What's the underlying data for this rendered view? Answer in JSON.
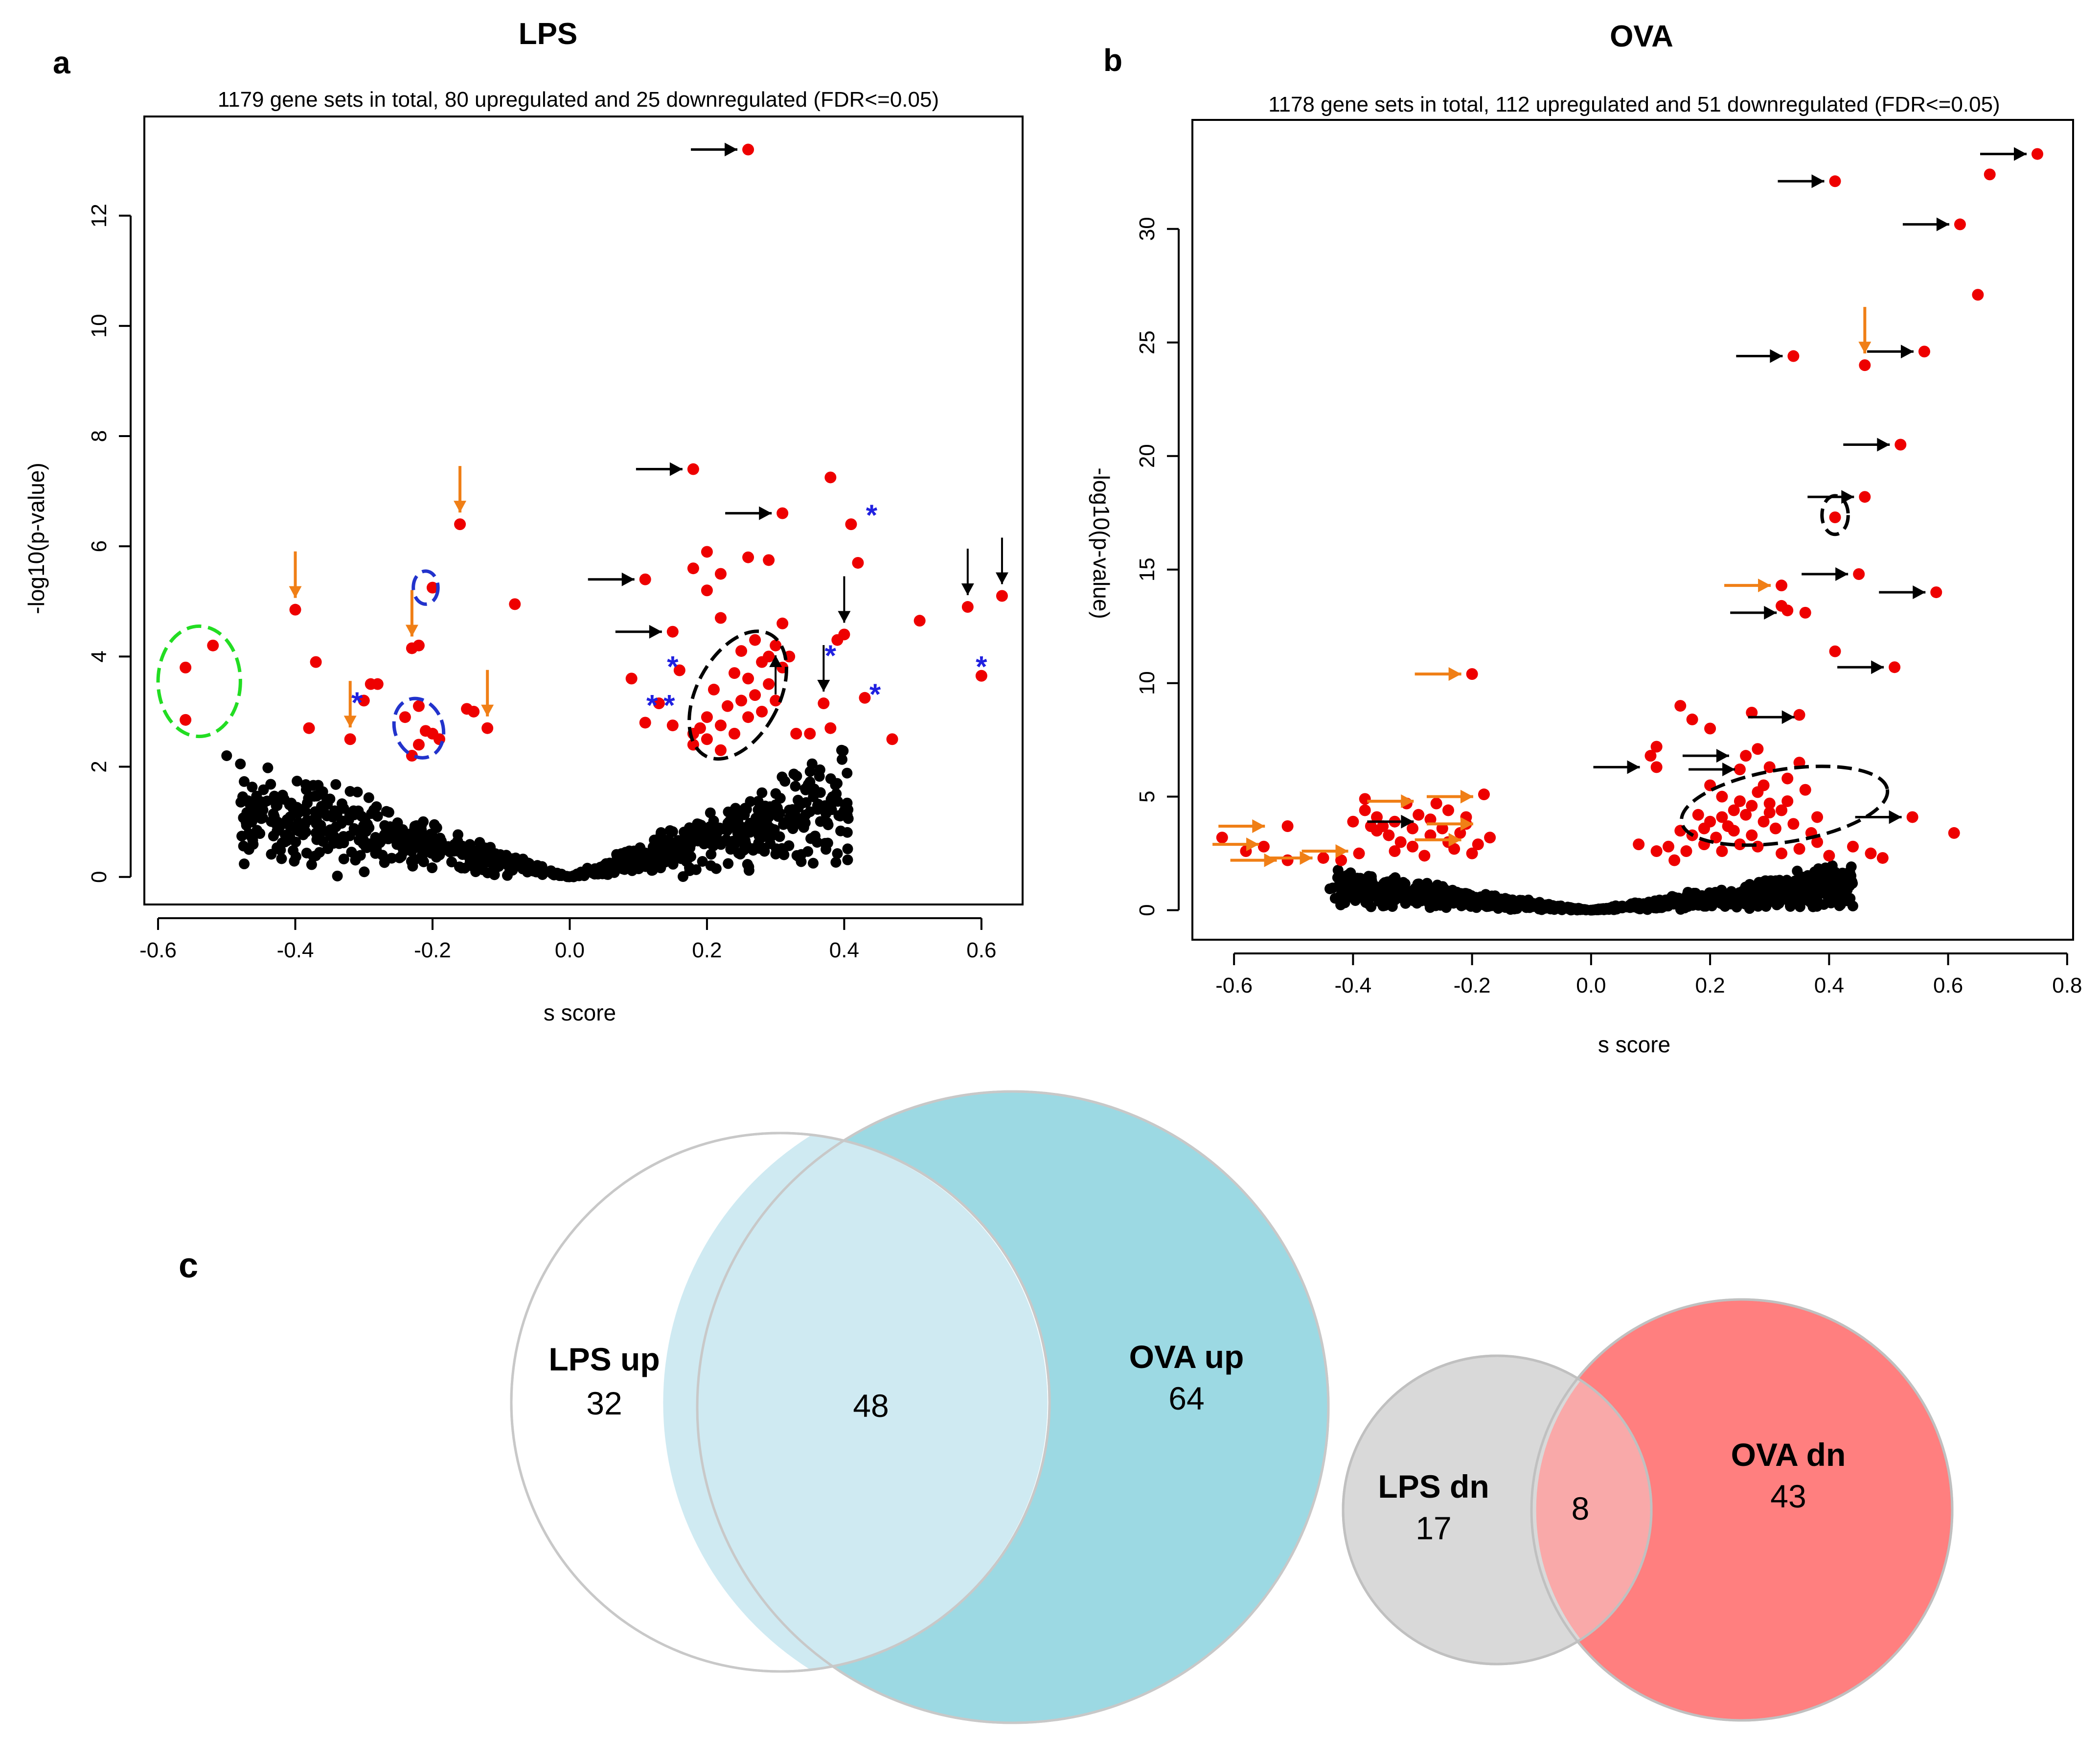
{
  "figure": {
    "panel_a_letter": "a",
    "panel_b_letter": "b",
    "panel_c_letter": "c"
  },
  "chart_data": [
    {
      "type": "scatter",
      "panel": "a",
      "title": "LPS",
      "subtitle": "1179 gene sets in total, 80 upregulated and  25 downregulated (FDR<=0.05)",
      "xlabel": "s score",
      "ylabel": "-log10(p-value)",
      "xlim": [
        -0.62,
        0.66
      ],
      "ylim": [
        -0.5,
        13.8
      ],
      "xticks": [
        "-0.6",
        "-0.4",
        "-0.2",
        "0.0",
        "0.2",
        "0.4",
        "0.6"
      ],
      "xtick_values": [
        -0.6,
        -0.4,
        -0.2,
        0.0,
        0.2,
        0.4,
        0.6
      ],
      "yticks": [
        "0",
        "2",
        "4",
        "6",
        "8",
        "10",
        "12"
      ],
      "ytick_values": [
        0,
        2,
        4,
        6,
        8,
        10,
        12
      ],
      "colors": {
        "significant": "#ee0000",
        "nonsignificant": "#000000",
        "arrow_black": "#000000",
        "arrow_orange": "#f07f16",
        "star": "#2020e0",
        "oval_green": "#22dd22",
        "oval_blue": "#2233cc",
        "oval_black": "#000000"
      },
      "significant_points": [
        [
          0.26,
          13.2
        ],
        [
          0.18,
          7.4
        ],
        [
          0.31,
          6.6
        ],
        [
          0.38,
          7.25
        ],
        [
          0.41,
          6.4
        ],
        [
          0.2,
          5.9
        ],
        [
          0.18,
          5.6
        ],
        [
          0.22,
          5.5
        ],
        [
          0.26,
          5.8
        ],
        [
          0.29,
          5.75
        ],
        [
          0.11,
          5.4
        ],
        [
          0.2,
          5.2
        ],
        [
          0.22,
          4.7
        ],
        [
          0.15,
          4.45
        ],
        [
          0.31,
          4.6
        ],
        [
          0.4,
          4.4
        ],
        [
          0.39,
          4.3
        ],
        [
          0.42,
          5.7
        ],
        [
          0.51,
          4.65
        ],
        [
          0.58,
          4.9
        ],
        [
          0.63,
          5.1
        ],
        [
          0.37,
          3.15
        ],
        [
          0.6,
          3.65
        ],
        [
          0.43,
          3.25
        ],
        [
          0.47,
          2.5
        ],
        [
          0.33,
          2.6
        ],
        [
          0.35,
          2.6
        ],
        [
          0.38,
          2.7
        ],
        [
          0.09,
          3.6
        ],
        [
          0.16,
          3.75
        ],
        [
          0.13,
          3.15
        ],
        [
          0.15,
          2.75
        ],
        [
          0.11,
          2.8
        ],
        [
          0.18,
          2.6
        ],
        [
          0.25,
          4.1
        ],
        [
          0.24,
          3.7
        ],
        [
          0.26,
          3.6
        ],
        [
          0.28,
          3.9
        ],
        [
          0.3,
          4.2
        ],
        [
          0.27,
          3.3
        ],
        [
          0.23,
          3.1
        ],
        [
          0.21,
          3.4
        ],
        [
          0.29,
          3.5
        ],
        [
          0.31,
          3.8
        ],
        [
          0.3,
          3.2
        ],
        [
          0.26,
          2.9
        ],
        [
          0.22,
          2.75
        ],
        [
          0.24,
          2.6
        ],
        [
          0.2,
          2.5
        ],
        [
          0.18,
          2.4
        ],
        [
          0.28,
          3.0
        ],
        [
          0.32,
          4.0
        ],
        [
          0.27,
          4.3
        ],
        [
          0.2,
          2.9
        ],
        [
          0.22,
          2.3
        ],
        [
          0.19,
          2.7
        ],
        [
          0.25,
          3.2
        ],
        [
          0.29,
          4.0
        ],
        [
          -0.56,
          3.8
        ],
        [
          -0.52,
          4.2
        ],
        [
          -0.56,
          2.85
        ],
        [
          -0.4,
          4.85
        ],
        [
          -0.37,
          3.9
        ],
        [
          -0.38,
          2.7
        ],
        [
          -0.16,
          6.4
        ],
        [
          -0.08,
          4.95
        ],
        [
          -0.2,
          5.25
        ],
        [
          -0.23,
          4.15
        ],
        [
          -0.22,
          4.2
        ],
        [
          -0.29,
          3.5
        ],
        [
          -0.28,
          3.5
        ],
        [
          -0.3,
          3.2
        ],
        [
          -0.32,
          2.5
        ],
        [
          -0.15,
          3.05
        ],
        [
          -0.14,
          3.0
        ],
        [
          -0.12,
          2.7
        ],
        [
          -0.22,
          3.1
        ],
        [
          -0.24,
          2.9
        ],
        [
          -0.2,
          2.6
        ],
        [
          -0.22,
          2.4
        ],
        [
          -0.19,
          2.5
        ],
        [
          -0.23,
          2.2
        ],
        [
          -0.21,
          2.65
        ]
      ],
      "annotations": {
        "arrows_black_right": [
          [
            0.26,
            13.2
          ],
          [
            0.18,
            7.4
          ],
          [
            0.31,
            6.6
          ],
          [
            0.11,
            5.4
          ],
          [
            0.15,
            4.45
          ]
        ],
        "arrows_black_down": [
          [
            0.4,
            4.4
          ],
          [
            0.37,
            3.15
          ],
          [
            0.58,
            4.9
          ],
          [
            0.63,
            5.1
          ]
        ],
        "arrows_black_up": [
          [
            0.3,
            4.2
          ]
        ],
        "arrows_orange_down": [
          [
            -0.4,
            4.85
          ],
          [
            -0.16,
            6.4
          ],
          [
            -0.23,
            4.15
          ],
          [
            -0.32,
            2.5
          ],
          [
            -0.12,
            2.7
          ]
        ],
        "stars": [
          [
            0.44,
            6.65
          ],
          [
            0.15,
            3.9
          ],
          [
            0.38,
            4.1
          ],
          [
            0.12,
            3.2
          ],
          [
            0.145,
            3.2
          ],
          [
            0.6,
            3.9
          ],
          [
            0.445,
            3.4
          ],
          [
            -0.31,
            3.25
          ]
        ],
        "star_char": "*",
        "ovals": [
          {
            "cx": -0.54,
            "cy": 3.55,
            "rx": 0.06,
            "ry": 1.0,
            "rotate": 0,
            "color": "green"
          },
          {
            "cx": -0.21,
            "cy": 5.25,
            "rx": 0.018,
            "ry": 0.3,
            "rotate": 0,
            "color": "blue"
          },
          {
            "cx": -0.22,
            "cy": 2.7,
            "rx": 0.035,
            "ry": 0.55,
            "rotate": -20,
            "color": "blue"
          },
          {
            "cx": 0.245,
            "cy": 3.3,
            "rx": 0.06,
            "ry": 1.25,
            "rotate": 28,
            "color": "black"
          }
        ]
      }
    },
    {
      "type": "scatter",
      "panel": "b",
      "title": "OVA",
      "subtitle": "1178 gene sets in total, 112 upregulated and  51 downregulated (FDR<=0.05)",
      "xlabel": "s score",
      "ylabel": "-log10(p-value)",
      "xlim": [
        -0.67,
        0.81
      ],
      "ylim": [
        -1.3,
        34.8
      ],
      "xticks": [
        "-0.6",
        "-0.4",
        "-0.2",
        "0.0",
        "0.2",
        "0.4",
        "0.6",
        "0.8"
      ],
      "xtick_values": [
        -0.6,
        -0.4,
        -0.2,
        0.0,
        0.2,
        0.4,
        0.6,
        0.8
      ],
      "yticks": [
        "0",
        "5",
        "10",
        "15",
        "20",
        "25",
        "30"
      ],
      "ytick_values": [
        0,
        5,
        10,
        15,
        20,
        25,
        30
      ],
      "colors": {
        "significant": "#ee0000",
        "nonsignificant": "#000000",
        "arrow_black": "#000000",
        "arrow_orange": "#f07f16",
        "oval_black": "#000000"
      },
      "significant_points": [
        [
          0.75,
          33.3
        ],
        [
          0.67,
          32.4
        ],
        [
          0.41,
          32.1
        ],
        [
          0.62,
          30.2
        ],
        [
          0.65,
          27.1
        ],
        [
          0.34,
          24.4
        ],
        [
          0.46,
          24.0
        ],
        [
          0.56,
          24.6
        ],
        [
          0.52,
          20.5
        ],
        [
          0.46,
          18.2
        ],
        [
          0.41,
          17.3
        ],
        [
          0.45,
          14.8
        ],
        [
          0.58,
          14.0
        ],
        [
          0.32,
          14.3
        ],
        [
          0.32,
          13.4
        ],
        [
          0.33,
          13.2
        ],
        [
          0.36,
          13.1
        ],
        [
          0.41,
          11.4
        ],
        [
          0.51,
          10.7
        ],
        [
          -0.2,
          10.4
        ],
        [
          0.54,
          4.1
        ],
        [
          0.61,
          3.4
        ],
        [
          0.15,
          9.0
        ],
        [
          0.27,
          8.7
        ],
        [
          0.17,
          8.4
        ],
        [
          0.35,
          8.6
        ],
        [
          0.2,
          8.0
        ],
        [
          0.11,
          7.2
        ],
        [
          0.1,
          6.8
        ],
        [
          0.28,
          7.1
        ],
        [
          0.26,
          6.8
        ],
        [
          0.11,
          6.3
        ],
        [
          0.25,
          6.2
        ],
        [
          0.3,
          6.3
        ],
        [
          0.35,
          6.5
        ],
        [
          0.2,
          5.5
        ],
        [
          0.22,
          5.0
        ],
        [
          0.25,
          4.8
        ],
        [
          0.28,
          5.2
        ],
        [
          0.3,
          4.7
        ],
        [
          0.32,
          4.4
        ],
        [
          0.18,
          4.2
        ],
        [
          0.2,
          3.9
        ],
        [
          0.23,
          3.7
        ],
        [
          0.26,
          4.2
        ],
        [
          0.29,
          3.9
        ],
        [
          0.33,
          4.8
        ],
        [
          0.36,
          5.3
        ],
        [
          0.38,
          4.1
        ],
        [
          0.15,
          3.5
        ],
        [
          0.17,
          3.3
        ],
        [
          0.21,
          3.2
        ],
        [
          0.24,
          3.5
        ],
        [
          0.27,
          3.3
        ],
        [
          0.31,
          3.6
        ],
        [
          0.34,
          3.8
        ],
        [
          0.37,
          3.4
        ],
        [
          0.13,
          2.8
        ],
        [
          0.16,
          2.6
        ],
        [
          0.19,
          2.9
        ],
        [
          0.22,
          2.6
        ],
        [
          0.25,
          2.9
        ],
        [
          0.28,
          2.8
        ],
        [
          0.32,
          2.5
        ],
        [
          0.35,
          2.7
        ],
        [
          0.38,
          3.0
        ],
        [
          0.4,
          2.4
        ],
        [
          0.44,
          2.8
        ],
        [
          0.47,
          2.5
        ],
        [
          0.49,
          2.3
        ],
        [
          0.08,
          2.9
        ],
        [
          0.11,
          2.6
        ],
        [
          0.14,
          2.2
        ],
        [
          0.24,
          4.4
        ],
        [
          0.27,
          4.6
        ],
        [
          0.3,
          4.3
        ],
        [
          0.22,
          4.1
        ],
        [
          0.19,
          3.6
        ],
        [
          0.29,
          5.5
        ],
        [
          0.33,
          5.8
        ],
        [
          -0.62,
          3.2
        ],
        [
          -0.58,
          2.6
        ],
        [
          -0.55,
          2.8
        ],
        [
          -0.51,
          2.2
        ],
        [
          -0.51,
          3.7
        ],
        [
          -0.45,
          2.3
        ],
        [
          -0.42,
          2.2
        ],
        [
          -0.39,
          2.5
        ],
        [
          -0.4,
          3.9
        ],
        [
          -0.38,
          4.4
        ],
        [
          -0.37,
          3.7
        ],
        [
          -0.36,
          4.1
        ],
        [
          -0.35,
          3.7
        ],
        [
          -0.34,
          3.3
        ],
        [
          -0.33,
          2.6
        ],
        [
          -0.32,
          3.0
        ],
        [
          -0.31,
          4.7
        ],
        [
          -0.3,
          3.6
        ],
        [
          -0.29,
          4.2
        ],
        [
          -0.28,
          2.4
        ],
        [
          -0.27,
          3.3
        ],
        [
          -0.26,
          4.7
        ],
        [
          -0.25,
          3.6
        ],
        [
          -0.24,
          3.0
        ],
        [
          -0.23,
          2.7
        ],
        [
          -0.22,
          3.4
        ],
        [
          -0.21,
          3.8
        ],
        [
          -0.2,
          2.5
        ],
        [
          -0.18,
          5.1
        ],
        [
          -0.17,
          3.2
        ],
        [
          -0.19,
          2.9
        ],
        [
          -0.38,
          4.9
        ],
        [
          -0.36,
          3.5
        ],
        [
          -0.33,
          3.9
        ],
        [
          -0.3,
          2.8
        ],
        [
          -0.27,
          4.0
        ],
        [
          -0.24,
          4.4
        ],
        [
          -0.21,
          4.1
        ]
      ],
      "annotations": {
        "arrows_black_right": [
          [
            0.75,
            33.3
          ],
          [
            0.41,
            32.1
          ],
          [
            0.62,
            30.2
          ],
          [
            0.34,
            24.4
          ],
          [
            0.56,
            24.6
          ],
          [
            0.52,
            20.5
          ],
          [
            0.46,
            18.2
          ],
          [
            0.45,
            14.8
          ],
          [
            0.58,
            14.0
          ],
          [
            0.33,
            13.1
          ],
          [
            0.36,
            8.5
          ],
          [
            0.1,
            6.3
          ],
          [
            0.25,
            6.8
          ],
          [
            0.26,
            6.2
          ],
          [
            0.51,
            10.7
          ],
          [
            0.54,
            4.1
          ],
          [
            -0.28,
            3.9
          ]
        ],
        "arrows_orange_right": [
          [
            0.32,
            14.3
          ],
          [
            -0.2,
            10.4
          ],
          [
            -0.53,
            3.7
          ],
          [
            -0.54,
            2.9
          ],
          [
            -0.51,
            2.2
          ],
          [
            -0.45,
            2.3
          ],
          [
            -0.39,
            2.6
          ],
          [
            -0.28,
            4.8
          ],
          [
            -0.18,
            5.0
          ],
          [
            -0.18,
            3.8
          ],
          [
            -0.2,
            3.1
          ]
        ],
        "arrows_orange_down": [
          [
            0.46,
            24.0
          ]
        ],
        "ovals": [
          {
            "cx": 0.41,
            "cy": 17.4,
            "rx": 0.022,
            "ry": 0.85,
            "rotate": 0,
            "color": "black"
          },
          {
            "cx": 0.325,
            "cy": 4.6,
            "rx": 0.175,
            "ry": 1.6,
            "rotate": -9,
            "color": "black"
          }
        ]
      }
    },
    {
      "type": "venn",
      "panel": "c",
      "sets": [
        {
          "name": "LPS up",
          "count": 32,
          "color": "#ffffff",
          "edge": "#c8c8c8"
        },
        {
          "name": "OVA up",
          "count": 64,
          "color": "#9cd9e3",
          "edge": "#c8c8c8"
        }
      ],
      "intersection": {
        "count": 48,
        "color": "#cfeaf2"
      }
    },
    {
      "type": "venn",
      "panel": "c",
      "sets": [
        {
          "name": "LPS dn",
          "count": 17,
          "color": "#d9d9d9",
          "edge": "#c0c0c0"
        },
        {
          "name": "OVA dn",
          "count": 43,
          "color": "#ff7f7f",
          "edge": "#c0c0c0"
        }
      ],
      "intersection": {
        "count": 8,
        "color": "#f9a9a9"
      }
    }
  ]
}
